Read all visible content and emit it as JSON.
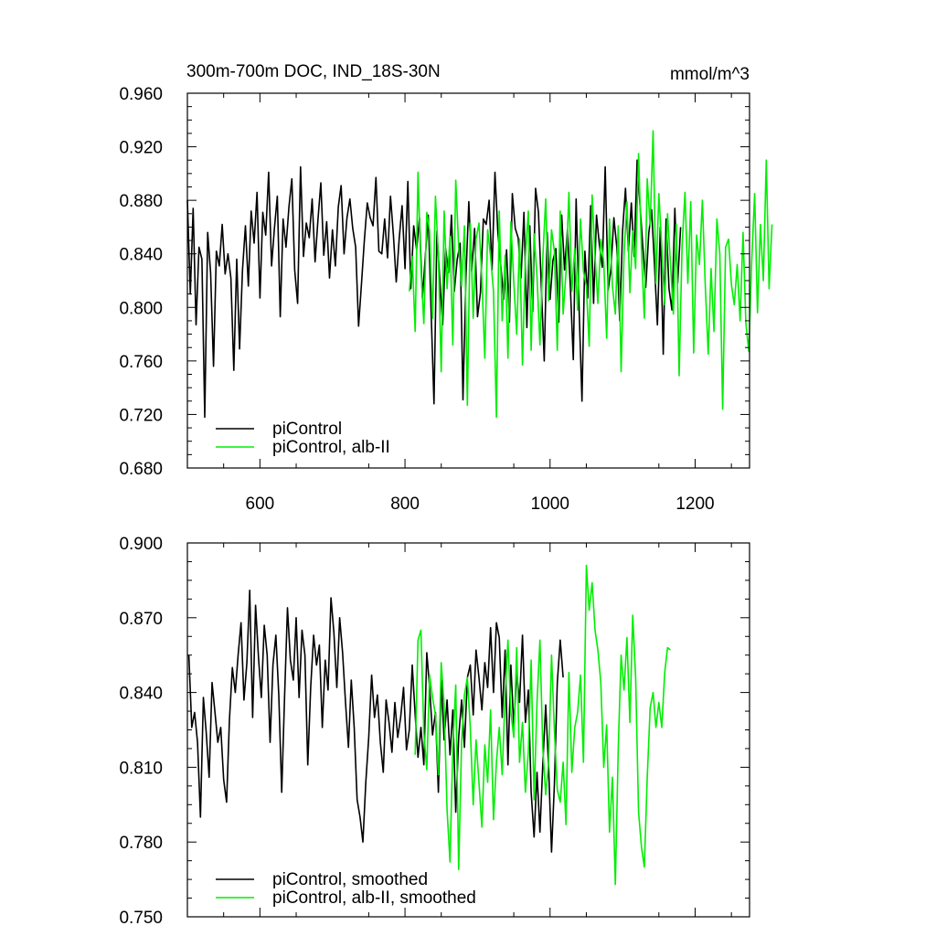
{
  "chart_data": [
    {
      "type": "line",
      "title": "300m-700m DOC, IND_18S-30N",
      "units": "mmol/m^3",
      "xlabel": "",
      "ylabel": "",
      "xlim": [
        500,
        1275
      ],
      "ylim": [
        0.68,
        0.96
      ],
      "xticks": [
        600,
        800,
        1000,
        1200
      ],
      "xtick_labels": [
        "600",
        "800",
        "1000",
        "1200"
      ],
      "yticks": [
        0.68,
        0.72,
        0.76,
        0.8,
        0.84,
        0.88,
        0.92,
        0.96
      ],
      "ytick_labels": [
        "0.680",
        "0.720",
        "0.760",
        "0.800",
        "0.840",
        "0.880",
        "0.920",
        "0.960"
      ],
      "grid": false,
      "legend_position": "bottom-left",
      "series": [
        {
          "name": "piControl",
          "color": "#000000",
          "x_start": 500,
          "x_step": 4,
          "values": [
            0.88,
            0.81,
            0.874,
            0.787,
            0.845,
            0.836,
            0.718,
            0.856,
            0.826,
            0.756,
            0.842,
            0.831,
            0.862,
            0.825,
            0.84,
            0.822,
            0.753,
            0.836,
            0.769,
            0.828,
            0.861,
            0.816,
            0.872,
            0.848,
            0.886,
            0.807,
            0.871,
            0.854,
            0.901,
            0.831,
            0.859,
            0.883,
            0.793,
            0.866,
            0.845,
            0.875,
            0.896,
            0.828,
            0.803,
            0.905,
            0.838,
            0.863,
            0.852,
            0.881,
            0.834,
            0.865,
            0.893,
            0.839,
            0.864,
            0.822,
            0.858,
            0.831,
            0.875,
            0.891,
            0.84,
            0.867,
            0.881,
            0.859,
            0.845,
            0.786,
            0.818,
            0.85,
            0.878,
            0.867,
            0.861,
            0.897,
            0.842,
            0.84,
            0.866,
            0.837,
            0.883,
            0.854,
            0.819,
            0.851,
            0.876,
            0.829,
            0.894,
            0.814,
            0.861,
            0.843,
            0.867,
            0.807,
            0.838,
            0.869,
            0.798,
            0.728,
            0.857,
            0.82,
            0.787,
            0.844,
            0.826,
            0.869,
            0.812,
            0.836,
            0.848,
            0.731,
            0.822,
            0.879,
            0.827,
            0.859,
            0.793,
            0.811,
            0.866,
            0.862,
            0.88,
            0.828,
            0.901,
            0.857,
            0.832,
            0.806,
            0.843,
            0.789,
            0.885,
            0.859,
            0.852,
            0.822,
            0.871,
            0.785,
            0.861,
            0.797,
            0.889,
            0.871,
            0.814,
            0.76,
            0.856,
            0.806,
            0.835,
            0.844,
            0.789,
            0.869,
            0.828,
            0.858,
            0.815,
            0.761,
            0.881,
            0.8,
            0.73,
            0.842,
            0.807,
            0.876,
            0.803,
            0.869,
            0.847,
            0.83,
            0.905,
            0.813,
            0.829,
            0.867,
            0.845,
            0.79,
            0.857,
            0.889,
            0.842,
            0.878,
            0.838,
            0.91,
            0.876,
            0.845,
            0.815,
            0.855,
            0.873,
            0.832,
            0.787,
            0.86,
            0.765,
            0.866,
            0.814,
            0.798,
            0.874,
            0.818,
            0.86
          ]
        },
        {
          "name": "piControl, alb-II",
          "color": "#00ee00",
          "x_start": 806,
          "x_step": 4,
          "values": [
            0.812,
            0.838,
            0.782,
            0.901,
            0.829,
            0.788,
            0.871,
            0.857,
            0.792,
            0.883,
            0.838,
            0.752,
            0.872,
            0.814,
            0.853,
            0.772,
            0.895,
            0.845,
            0.816,
            0.861,
            0.727,
            0.863,
            0.792,
            0.851,
            0.863,
            0.821,
            0.762,
            0.858,
            0.838,
            0.812,
            0.718,
            0.872,
            0.79,
            0.839,
            0.762,
            0.864,
            0.819,
            0.78,
            0.851,
            0.757,
            0.838,
            0.872,
            0.768,
            0.855,
            0.823,
            0.772,
            0.836,
            0.881,
            0.805,
            0.858,
            0.842,
            0.768,
            0.872,
            0.795,
            0.826,
            0.886,
            0.812,
            0.844,
            0.798,
            0.866,
            0.827,
            0.816,
            0.771,
            0.884,
            0.838,
            0.803,
            0.851,
            0.834,
            0.777,
            0.866,
            0.816,
            0.795,
            0.861,
            0.752,
            0.84,
            0.879,
            0.811,
            0.857,
            0.829,
            0.915,
            0.842,
            0.792,
            0.896,
            0.861,
            0.932,
            0.818,
            0.885,
            0.845,
            0.802,
            0.87,
            0.833,
            0.795,
            0.862,
            0.749,
            0.846,
            0.886,
            0.818,
            0.879,
            0.766,
            0.854,
            0.832,
            0.88,
            0.816,
            0.765,
            0.829,
            0.782,
            0.866,
            0.84,
            0.724,
            0.845,
            0.851,
            0.817,
            0.802,
            0.832,
            0.79,
            0.856,
            0.788,
            0.767,
            0.835,
            0.885,
            0.796,
            0.862,
            0.82,
            0.91,
            0.814,
            0.862
          ]
        }
      ]
    },
    {
      "type": "line",
      "title": "",
      "xlabel": "",
      "ylabel": "",
      "xlim": [
        500,
        1275
      ],
      "ylim": [
        0.75,
        0.9
      ],
      "xticks": [
        600,
        800,
        1000,
        1200
      ],
      "xtick_labels": [],
      "yticks": [
        0.75,
        0.78,
        0.81,
        0.84,
        0.87,
        0.9
      ],
      "ytick_labels": [
        "0.750",
        "0.780",
        "0.810",
        "0.840",
        "0.870",
        "0.900"
      ],
      "grid": false,
      "legend_position": "bottom-left",
      "series": [
        {
          "name": "piControl, smoothed",
          "color": "#000000",
          "x_start": 502,
          "x_step": 4,
          "values": [
            0.855,
            0.826,
            0.832,
            0.82,
            0.79,
            0.838,
            0.824,
            0.806,
            0.844,
            0.832,
            0.82,
            0.826,
            0.805,
            0.796,
            0.829,
            0.85,
            0.84,
            0.855,
            0.868,
            0.837,
            0.852,
            0.881,
            0.83,
            0.875,
            0.854,
            0.838,
            0.867,
            0.855,
            0.82,
            0.851,
            0.863,
            0.839,
            0.8,
            0.838,
            0.874,
            0.853,
            0.845,
            0.87,
            0.838,
            0.865,
            0.855,
            0.811,
            0.842,
            0.863,
            0.851,
            0.859,
            0.826,
            0.853,
            0.841,
            0.878,
            0.864,
            0.842,
            0.87,
            0.856,
            0.836,
            0.818,
            0.845,
            0.826,
            0.797,
            0.79,
            0.78,
            0.804,
            0.822,
            0.847,
            0.83,
            0.839,
            0.82,
            0.808,
            0.837,
            0.828,
            0.816,
            0.836,
            0.822,
            0.83,
            0.842,
            0.817,
            0.825,
            0.851,
            0.831,
            0.814,
            0.826,
            0.811,
            0.856,
            0.842,
            0.823,
            0.832,
            0.8,
            0.845,
            0.821,
            0.837,
            0.815,
            0.833,
            0.792,
            0.822,
            0.837,
            0.818,
            0.846,
            0.851,
            0.831,
            0.857,
            0.846,
            0.833,
            0.852,
            0.842,
            0.866,
            0.84,
            0.868,
            0.862,
            0.83,
            0.857,
            0.811,
            0.851,
            0.826,
            0.848,
            0.836,
            0.863,
            0.828,
            0.841,
            0.8,
            0.782,
            0.808,
            0.784,
            0.811,
            0.835,
            0.81,
            0.776,
            0.803,
            0.844,
            0.861,
            0.846
          ]
        },
        {
          "name": "piControl, alb-II, smoothed",
          "color": "#00ee00",
          "x_start": 814,
          "x_step": 4,
          "values": [
            0.815,
            0.861,
            0.865,
            0.824,
            0.809,
            0.847,
            0.838,
            0.831,
            0.807,
            0.852,
            0.835,
            0.793,
            0.772,
            0.818,
            0.843,
            0.769,
            0.82,
            0.839,
            0.846,
            0.826,
            0.795,
            0.821,
            0.804,
            0.786,
            0.819,
            0.804,
            0.833,
            0.789,
            0.812,
            0.826,
            0.807,
            0.839,
            0.861,
            0.832,
            0.822,
            0.858,
            0.812,
            0.828,
            0.8,
            0.816,
            0.853,
            0.797,
            0.836,
            0.861,
            0.818,
            0.799,
            0.812,
            0.855,
            0.825,
            0.801,
            0.796,
            0.812,
            0.787,
            0.848,
            0.808,
            0.826,
            0.832,
            0.847,
            0.812,
            0.891,
            0.873,
            0.884,
            0.865,
            0.857,
            0.844,
            0.81,
            0.827,
            0.784,
            0.806,
            0.763,
            0.818,
            0.855,
            0.841,
            0.862,
            0.828,
            0.871,
            0.846,
            0.792,
            0.778,
            0.77,
            0.806,
            0.834,
            0.84,
            0.826,
            0.836,
            0.826,
            0.848,
            0.858,
            0.857
          ]
        }
      ]
    }
  ]
}
